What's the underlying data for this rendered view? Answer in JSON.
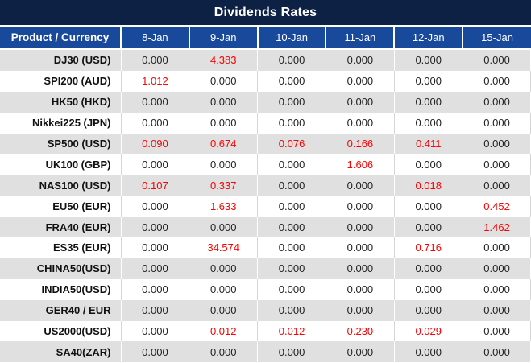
{
  "title": "Dividends Rates",
  "colors": {
    "title_bar_navy": "#0d2145",
    "header_blue": "#19499b",
    "row_alt_gray": "#e0e0e0",
    "row_white": "#ffffff",
    "value_text": "#1f1f1f",
    "nonzero_value_red": "#fe0000",
    "header_text": "#ffffff"
  },
  "table": {
    "product_header": "Product / Currency",
    "date_headers": [
      "8-Jan",
      "9-Jan",
      "10-Jan",
      "11-Jan",
      "12-Jan",
      "15-Jan"
    ],
    "rows": [
      {
        "product": "DJ30 (USD)",
        "values": [
          "0.000",
          "4.383",
          "0.000",
          "0.000",
          "0.000",
          "0.000"
        ]
      },
      {
        "product": "SPI200 (AUD)",
        "values": [
          "1.012",
          "0.000",
          "0.000",
          "0.000",
          "0.000",
          "0.000"
        ]
      },
      {
        "product": "HK50 (HKD)",
        "values": [
          "0.000",
          "0.000",
          "0.000",
          "0.000",
          "0.000",
          "0.000"
        ]
      },
      {
        "product": "Nikkei225 (JPN)",
        "values": [
          "0.000",
          "0.000",
          "0.000",
          "0.000",
          "0.000",
          "0.000"
        ]
      },
      {
        "product": "SP500 (USD)",
        "values": [
          "0.090",
          "0.674",
          "0.076",
          "0.166",
          "0.411",
          "0.000"
        ]
      },
      {
        "product": "UK100 (GBP)",
        "values": [
          "0.000",
          "0.000",
          "0.000",
          "1.606",
          "0.000",
          "0.000"
        ]
      },
      {
        "product": "NAS100 (USD)",
        "values": [
          "0.107",
          "0.337",
          "0.000",
          "0.000",
          "0.018",
          "0.000"
        ]
      },
      {
        "product": "EU50 (EUR)",
        "values": [
          "0.000",
          "1.633",
          "0.000",
          "0.000",
          "0.000",
          "0.452"
        ]
      },
      {
        "product": "FRA40 (EUR)",
        "values": [
          "0.000",
          "0.000",
          "0.000",
          "0.000",
          "0.000",
          "1.462"
        ]
      },
      {
        "product": "ES35 (EUR)",
        "values": [
          "0.000",
          "34.574",
          "0.000",
          "0.000",
          "0.716",
          "0.000"
        ]
      },
      {
        "product": "CHINA50(USD)",
        "values": [
          "0.000",
          "0.000",
          "0.000",
          "0.000",
          "0.000",
          "0.000"
        ]
      },
      {
        "product": "INDIA50(USD)",
        "values": [
          "0.000",
          "0.000",
          "0.000",
          "0.000",
          "0.000",
          "0.000"
        ]
      },
      {
        "product": "GER40 / EUR",
        "values": [
          "0.000",
          "0.000",
          "0.000",
          "0.000",
          "0.000",
          "0.000"
        ]
      },
      {
        "product": "US2000(USD)",
        "values": [
          "0.000",
          "0.012",
          "0.012",
          "0.230",
          "0.029",
          "0.000"
        ]
      },
      {
        "product": "SA40(ZAR)",
        "values": [
          "0.000",
          "0.000",
          "0.000",
          "0.000",
          "0.000",
          "0.000"
        ]
      }
    ]
  }
}
